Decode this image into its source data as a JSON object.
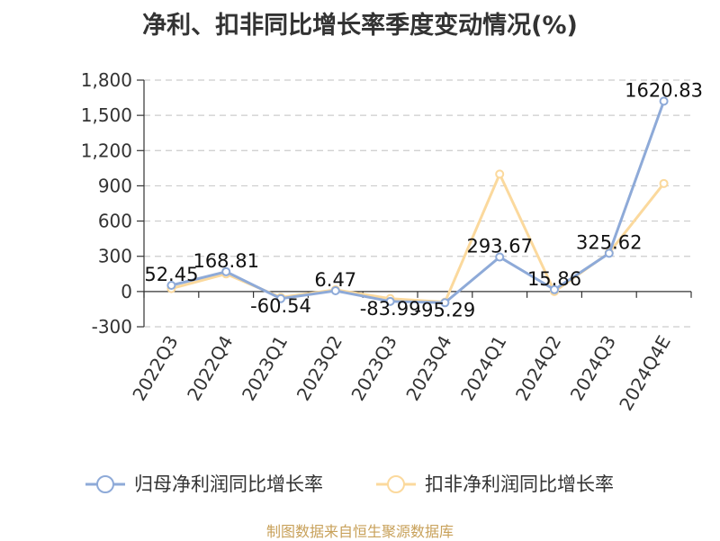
{
  "title": "净利、扣非同比增长率季度变动情况(%)",
  "source": "制图数据来自恒生聚源数据库",
  "chart_data": {
    "type": "line",
    "categories": [
      "2022Q3",
      "2022Q4",
      "2023Q1",
      "2023Q2",
      "2023Q3",
      "2023Q4",
      "2024Q1",
      "2024Q2",
      "2024Q3",
      "2024Q4E"
    ],
    "series": [
      {
        "name": "归母净利润同比增长率",
        "color": "#8eaad8",
        "values": [
          52.45,
          168.81,
          -60.54,
          6.47,
          -83.99,
          -95.29,
          293.67,
          15.86,
          325.62,
          1620.83
        ],
        "labels": [
          "52.45",
          "168.81",
          "-60.54",
          "6.47",
          "-83.99",
          "-95.29",
          "293.67",
          "15.86",
          "325.62",
          "1620.83"
        ]
      },
      {
        "name": "扣非净利润同比增长率",
        "color": "#fbd99d",
        "values": [
          25,
          150,
          -50,
          15,
          -60,
          -90,
          1000,
          0,
          330,
          920
        ]
      }
    ],
    "yticks": [
      "-300",
      "0",
      "300",
      "600",
      "900",
      "1,200",
      "1,500",
      "1,800"
    ],
    "ylim": [
      -300,
      1800
    ],
    "grid": true,
    "legend_position": "bottom"
  }
}
